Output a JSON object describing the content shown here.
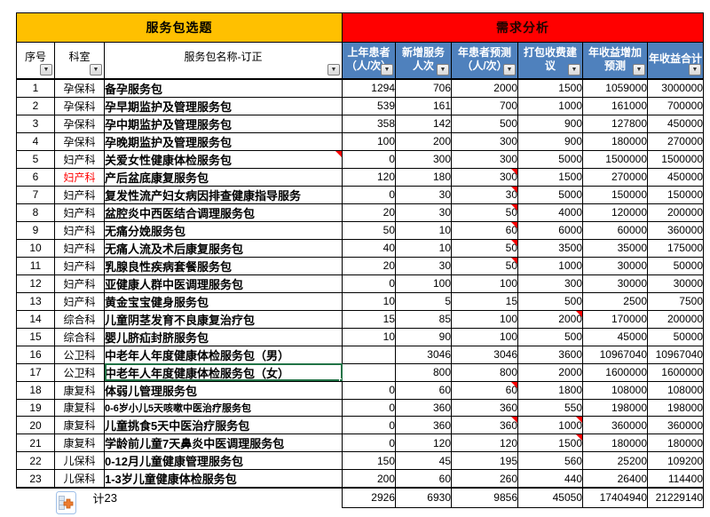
{
  "sections": {
    "left_title": "服务包选题",
    "right_title": "需求分析"
  },
  "columns": [
    {
      "id": "no",
      "lines": [
        "序号"
      ],
      "style": "white"
    },
    {
      "id": "dept",
      "lines": [
        "科室"
      ],
      "style": "white"
    },
    {
      "id": "name",
      "lines": [
        "服务包名称-订正"
      ],
      "style": "white"
    },
    {
      "id": "prev",
      "lines": [
        "上年患者",
        "（人/次）"
      ],
      "style": "blue"
    },
    {
      "id": "new",
      "lines": [
        "新增服务",
        "人次"
      ],
      "style": "blue"
    },
    {
      "id": "pred",
      "lines": [
        "年患者预测",
        "（人/次）"
      ],
      "style": "blue"
    },
    {
      "id": "fee",
      "lines": [
        "打包收费建",
        "议"
      ],
      "style": "blue"
    },
    {
      "id": "gain",
      "lines": [
        "年收益增加",
        "预测"
      ],
      "style": "blue"
    },
    {
      "id": "total",
      "lines": [
        "年收益合计"
      ],
      "style": "blue"
    }
  ],
  "filter_icon": "chevron-down",
  "rows": [
    {
      "no": "1",
      "dept": "孕保科",
      "name": "备孕服务包",
      "values": [
        "1294",
        "706",
        "2000",
        "1500",
        "1059000",
        "3000000"
      ]
    },
    {
      "no": "2",
      "dept": "孕保科",
      "name": "孕早期监护及管理服务包",
      "values": [
        "539",
        "161",
        "700",
        "1000",
        "161000",
        "700000"
      ]
    },
    {
      "no": "3",
      "dept": "孕保科",
      "name": "孕中期监护及管理服务包",
      "values": [
        "358",
        "142",
        "500",
        "900",
        "127800",
        "450000"
      ]
    },
    {
      "no": "4",
      "dept": "孕保科",
      "name": "孕晚期监护及管理服务包",
      "values": [
        "100",
        "200",
        "300",
        "900",
        "180000",
        "270000"
      ]
    },
    {
      "no": "5",
      "dept": "妇产科",
      "name": "关爱女性健康体检服务包",
      "values": [
        "0",
        "300",
        "300",
        "5000",
        "1500000",
        "1500000"
      ],
      "marks": [
        "name"
      ]
    },
    {
      "no": "6",
      "dept": "妇产科",
      "dept_red": true,
      "name": "产后盆底康复服务包",
      "values": [
        "120",
        "180",
        "300",
        "1500",
        "270000",
        "450000"
      ],
      "marks": [
        "pred"
      ]
    },
    {
      "no": "7",
      "dept": "妇产科",
      "name": "复发性流产妇女病因排查健康指导服务",
      "values": [
        "0",
        "30",
        "30",
        "5000",
        "150000",
        "150000"
      ],
      "marks": [
        "pred"
      ]
    },
    {
      "no": "8",
      "dept": "妇产科",
      "name": "盆腔炎中西医结合调理服务包",
      "values": [
        "20",
        "30",
        "50",
        "4000",
        "120000",
        "200000"
      ],
      "marks": [
        "pred"
      ]
    },
    {
      "no": "9",
      "dept": "妇产科",
      "name": "无痛分娩服务包",
      "values": [
        "50",
        "10",
        "60",
        "6000",
        "60000",
        "360000"
      ],
      "marks": [
        "pred"
      ]
    },
    {
      "no": "10",
      "dept": "妇产科",
      "name": "无痛人流及术后康复服务包",
      "values": [
        "40",
        "10",
        "50",
        "3500",
        "35000",
        "175000"
      ],
      "marks": [
        "pred"
      ]
    },
    {
      "no": "11",
      "dept": "妇产科",
      "name": "乳腺良性疾病套餐服务包",
      "values": [
        "20",
        "30",
        "50",
        "1000",
        "30000",
        "50000"
      ],
      "marks": [
        "pred"
      ]
    },
    {
      "no": "12",
      "dept": "妇产科",
      "name": "亚健康人群中医调理服务包",
      "values": [
        "0",
        "100",
        "100",
        "300",
        "30000",
        "30000"
      ]
    },
    {
      "no": "13",
      "dept": "妇产科",
      "name": "黄金宝宝健身服务包",
      "values": [
        "10",
        "5",
        "15",
        "500",
        "2500",
        "7500"
      ]
    },
    {
      "no": "14",
      "dept": "综合科",
      "name": "儿童阴茎发育不良康复治疗包",
      "values": [
        "15",
        "85",
        "100",
        "2000",
        "170000",
        "200000"
      ],
      "marks": [
        "fee"
      ]
    },
    {
      "no": "15",
      "dept": "综合科",
      "name": "婴儿脐疝封脐服务包",
      "values": [
        "10",
        "90",
        "100",
        "500",
        "45000",
        "50000"
      ]
    },
    {
      "no": "16",
      "dept": "公卫科",
      "name": "中老年人年度健康体检服务包（男）",
      "values": [
        "",
        "3046",
        "3046",
        "3600",
        "10967040",
        "10967040"
      ]
    },
    {
      "no": "17",
      "dept": "公卫科",
      "name": "中老年人年度健康体检服务包（女）",
      "values": [
        "",
        "800",
        "800",
        "2000",
        "1600000",
        "1600000"
      ],
      "selected": true
    },
    {
      "no": "18",
      "dept": "康复科",
      "name": "体弱儿管理服务包",
      "values": [
        "0",
        "60",
        "60",
        "1800",
        "108000",
        "108000"
      ],
      "marks": [
        "pred"
      ]
    },
    {
      "no": "19",
      "dept": "康复科",
      "name": "0-6岁小儿5天咳嗽中医治疗服务包",
      "values": [
        "0",
        "360",
        "360",
        "550",
        "198000",
        "198000"
      ],
      "small": true
    },
    {
      "no": "20",
      "dept": "康复科",
      "name": "儿童挑食5天中医治疗服务包",
      "values": [
        "0",
        "360",
        "360",
        "1000",
        "360000",
        "360000"
      ],
      "marks": [
        "pred",
        "fee"
      ]
    },
    {
      "no": "21",
      "dept": "康复科",
      "name": "学龄前儿童7天鼻炎中医调理服务包",
      "values": [
        "0",
        "120",
        "120",
        "1500",
        "180000",
        "180000"
      ],
      "marks": [
        "fee"
      ]
    },
    {
      "no": "22",
      "dept": "儿保科",
      "name": "0-12月儿童健康管理服务包",
      "values": [
        "150",
        "45",
        "195",
        "560",
        "25200",
        "109200"
      ]
    },
    {
      "no": "23",
      "dept": "儿保科",
      "name": "1-3岁儿童健康体检服务包",
      "values": [
        "200",
        "60",
        "260",
        "440",
        "26400",
        "114400"
      ]
    }
  ],
  "selected_cell": {
    "row": "17",
    "column": "name"
  },
  "total_row": {
    "label": "计",
    "count": "23",
    "values": [
      "2926",
      "6930",
      "9856",
      "45050",
      "17404940",
      "21229140"
    ]
  },
  "icons": {
    "filter": "chevron-down-icon",
    "comment": "red-corner-comment-indicator",
    "insert_options": "insert-options-plus-icon"
  },
  "colors": {
    "band_left": "#FFC000",
    "band_right": "#FF0000",
    "header_blue": "#4F81BD",
    "selection_green": "#217346",
    "marker_red": "#FF0000",
    "dept_red_text": "#FF0000"
  }
}
